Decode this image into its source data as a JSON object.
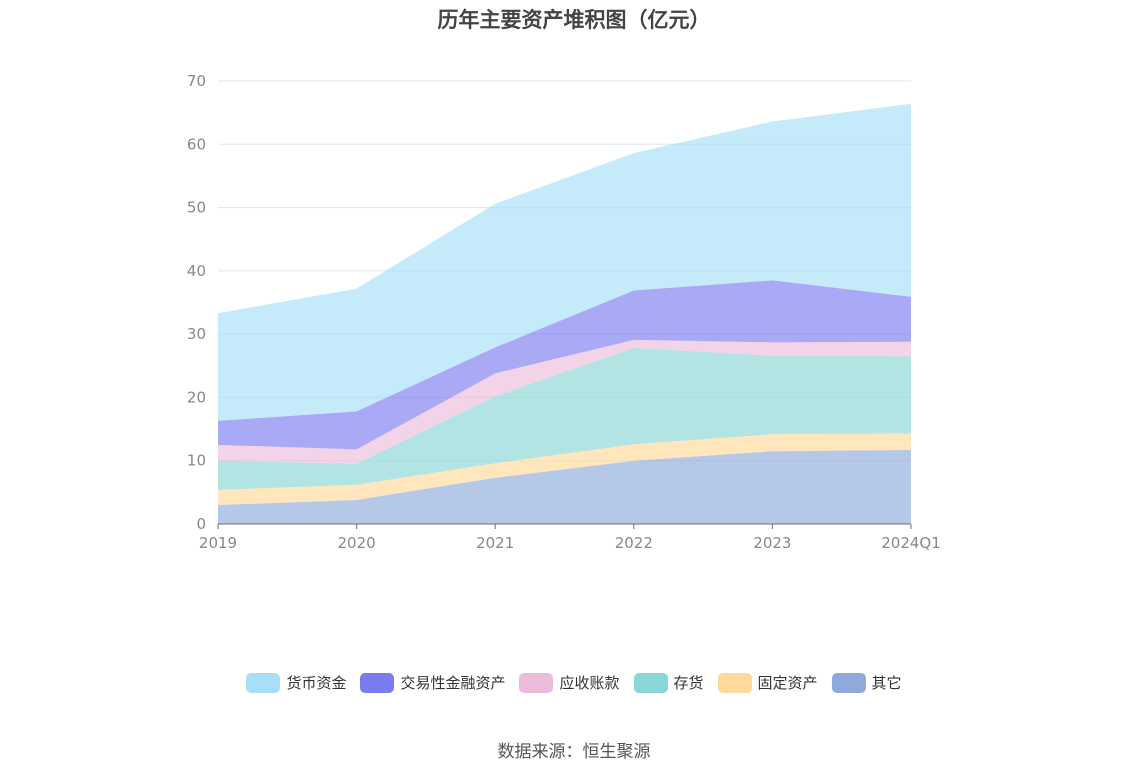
{
  "chart_data": {
    "type": "area",
    "stacked": true,
    "title": "历年主要资产堆积图（亿元）",
    "categories": [
      "2019",
      "2020",
      "2021",
      "2022",
      "2023",
      "2024Q1"
    ],
    "ylim": [
      0,
      70
    ],
    "yticks": [
      0,
      10,
      20,
      30,
      40,
      50,
      60,
      70
    ],
    "grid": true,
    "legend_position": "bottom",
    "series": [
      {
        "name": "其它",
        "color": "#8eaadb",
        "values": [
          3.0,
          3.8,
          7.3,
          10.0,
          11.5,
          11.7
        ]
      },
      {
        "name": "固定资产",
        "color": "#ffd999",
        "values": [
          2.4,
          2.4,
          2.3,
          2.6,
          2.7,
          2.6
        ]
      },
      {
        "name": "存货",
        "color": "#8ad6d6",
        "values": [
          4.6,
          3.3,
          10.6,
          15.2,
          12.4,
          12.2
        ]
      },
      {
        "name": "应收账款",
        "color": "#ebbbdc",
        "values": [
          2.5,
          2.3,
          3.6,
          1.3,
          2.1,
          2.3
        ]
      },
      {
        "name": "交易性金融资产",
        "color": "#7b7bf0",
        "values": [
          3.8,
          6.0,
          4.1,
          7.8,
          9.8,
          7.1
        ]
      },
      {
        "name": "货币资金",
        "color": "#a6dff7",
        "values": [
          17.0,
          19.4,
          22.7,
          21.7,
          25.1,
          30.5
        ]
      }
    ],
    "legend_order": [
      "货币资金",
      "交易性金融资产",
      "应收账款",
      "存货",
      "固定资产",
      "其它"
    ]
  },
  "source_label": "数据来源：恒生聚源"
}
